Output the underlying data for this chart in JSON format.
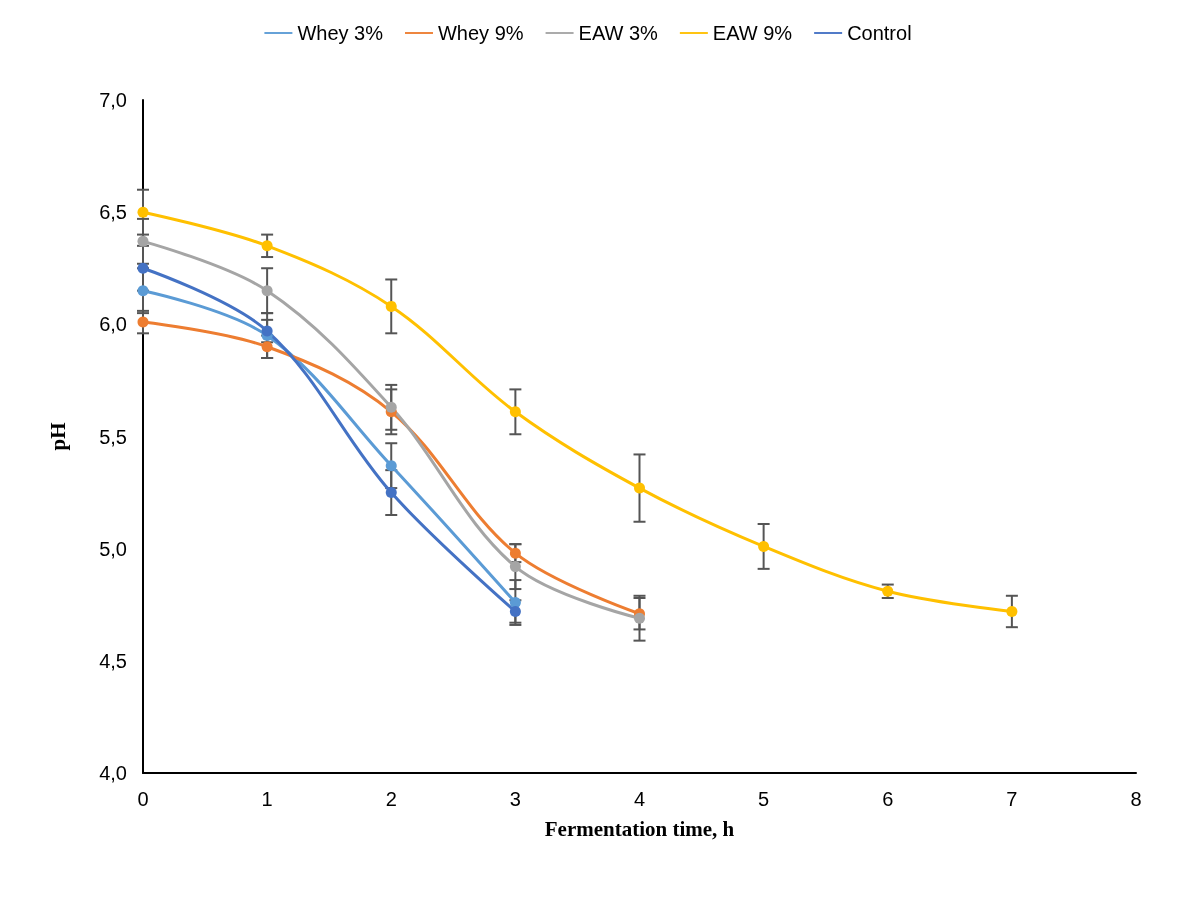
{
  "chart_data": {
    "type": "line",
    "xlabel": "Fermentation time, h",
    "ylabel": "pH",
    "xlim": [
      0,
      8
    ],
    "xticks": [
      0,
      1,
      2,
      3,
      4,
      5,
      6,
      7,
      8
    ],
    "ylim": [
      4,
      7
    ],
    "yticks": [
      {
        "value": 4,
        "label": "4,0"
      },
      {
        "value": 4.5,
        "label": "4,5"
      },
      {
        "value": 5,
        "label": "5,0"
      },
      {
        "value": 5.5,
        "label": "5,5"
      },
      {
        "value": 6,
        "label": "6,0"
      },
      {
        "value": 6.5,
        "label": "6,5"
      },
      {
        "value": 7,
        "label": "7,0"
      }
    ],
    "grid": false,
    "legend": "top",
    "marker": "circle",
    "line_style": "solid",
    "series": [
      {
        "name": "Whey 3%",
        "color": "#5b9bd5",
        "x": [
          0,
          1,
          2,
          3
        ],
        "values": [
          6.15,
          5.95,
          5.37,
          4.76
        ],
        "errors": [
          0.1,
          0.1,
          0.1,
          0.1
        ]
      },
      {
        "name": "Whey 9%",
        "color": "#ed7d31",
        "x": [
          0,
          1,
          2,
          3,
          4
        ],
        "values": [
          6.01,
          5.9,
          5.61,
          4.98,
          4.71
        ],
        "errors": [
          0.05,
          0.05,
          0.1,
          0.04,
          0.07
        ]
      },
      {
        "name": "EAW 3%",
        "color": "#a5a5a5",
        "x": [
          0,
          1,
          2,
          3,
          4
        ],
        "values": [
          6.37,
          6.15,
          5.63,
          4.92,
          4.69
        ],
        "errors": [
          0.1,
          0.1,
          0.1,
          0.1,
          0.1
        ]
      },
      {
        "name": "EAW 9%",
        "color": "#ffc000",
        "x": [
          0,
          1,
          2,
          3,
          4,
          5,
          6,
          7
        ],
        "values": [
          6.5,
          6.35,
          6.08,
          5.61,
          5.27,
          5.01,
          4.81,
          4.72
        ],
        "errors": [
          0.1,
          0.05,
          0.12,
          0.1,
          0.15,
          0.1,
          0.03,
          0.07
        ]
      },
      {
        "name": "Control",
        "color": "#4472c4",
        "x": [
          0,
          1,
          2,
          3
        ],
        "values": [
          6.25,
          5.97,
          5.25,
          4.72
        ],
        "errors": [
          0.1,
          0.05,
          0.1,
          0.05
        ]
      }
    ]
  }
}
